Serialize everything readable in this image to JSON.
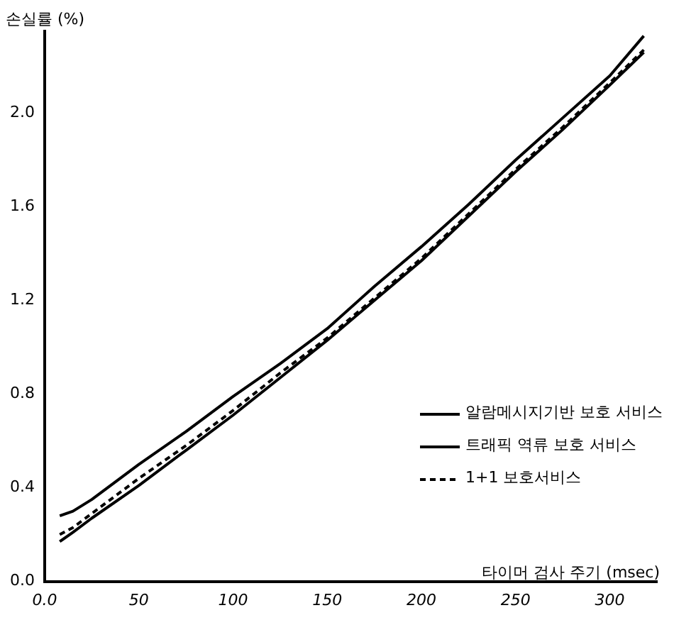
{
  "chart_data": {
    "type": "line",
    "xlabel": "타이머 검사 주기 (msec)",
    "ylabel": "손실률 (%)",
    "xlim": [
      0,
      325
    ],
    "xticks": [
      {
        "value": 0,
        "label": "0.0"
      },
      50,
      100,
      150,
      200,
      250,
      300
    ],
    "ylim": [
      0,
      2.35
    ],
    "yticks": [
      {
        "value": 0,
        "label": "0.0"
      },
      0.4,
      0.8,
      1.2,
      1.6,
      {
        "value": 2,
        "label": "2.0"
      }
    ],
    "grid": false,
    "legend": "bottom right",
    "marker": "none",
    "series": [
      {
        "name": "알람메시지기반 보호 서비스",
        "color": "#000000",
        "line_style": "solid",
        "x": [
          8,
          15,
          25,
          50,
          75,
          100,
          125,
          150,
          175,
          200,
          225,
          250,
          275,
          300,
          318
        ],
        "values": [
          0.28,
          0.3,
          0.35,
          0.5,
          0.64,
          0.79,
          0.93,
          1.08,
          1.26,
          1.43,
          1.61,
          1.8,
          1.98,
          2.16,
          2.33
        ]
      },
      {
        "name": "트래픽 역류 보호 서비스",
        "color": "#000000",
        "line_style": "solid",
        "x": [
          8,
          15,
          25,
          50,
          75,
          100,
          125,
          150,
          175,
          200,
          225,
          250,
          275,
          300,
          318
        ],
        "values": [
          0.17,
          0.21,
          0.27,
          0.41,
          0.56,
          0.71,
          0.87,
          1.03,
          1.2,
          1.37,
          1.56,
          1.75,
          1.93,
          2.12,
          2.26
        ]
      },
      {
        "name": "1+1 보호서비스",
        "color": "#000000",
        "line_style": "dashed",
        "x": [
          8,
          15,
          25,
          50,
          75,
          100,
          125,
          150,
          175,
          200,
          225,
          250,
          275,
          300,
          318
        ],
        "values": [
          0.2,
          0.23,
          0.29,
          0.44,
          0.58,
          0.73,
          0.89,
          1.04,
          1.21,
          1.38,
          1.57,
          1.76,
          1.94,
          2.13,
          2.27
        ]
      }
    ]
  }
}
